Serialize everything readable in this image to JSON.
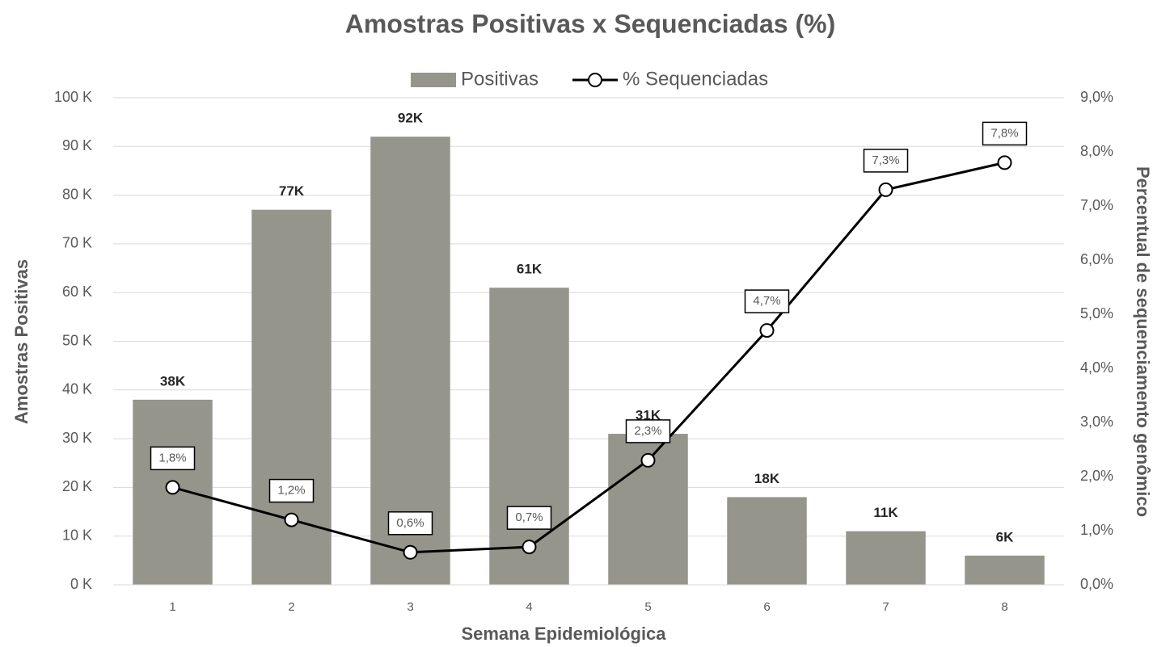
{
  "chart_data": {
    "type": "bar_line",
    "title": "Amostras Positivas x Sequenciadas (%)",
    "x_label": "Semana Epidemiológica",
    "y_label": "Amostras Positivas",
    "y2_label": "Percentual de sequenciamento genômico",
    "categories": [
      "1",
      "2",
      "3",
      "4",
      "5",
      "6",
      "7",
      "8"
    ],
    "series": [
      {
        "name": "Positivas",
        "type": "bar",
        "color": "#95958b",
        "values": [
          38,
          77,
          92,
          61,
          31,
          18,
          11,
          6
        ],
        "value_labels": [
          "38K",
          "77K",
          "92K",
          "61K",
          "31K",
          "18K",
          "11K",
          "6K"
        ]
      },
      {
        "name": "% Sequenciadas",
        "type": "line",
        "axis": "y2",
        "color": "#000000",
        "values": [
          1.8,
          1.2,
          0.6,
          0.7,
          2.3,
          4.7,
          7.3,
          7.8
        ],
        "value_labels": [
          "1,8%",
          "1,2%",
          "0,6%",
          "0,7%",
          "2,3%",
          "4,7%",
          "7,3%",
          "7,8%"
        ]
      }
    ],
    "ylim": [
      0,
      100
    ],
    "yticks": [
      {
        "value": 0,
        "label": "0 K"
      },
      {
        "value": 10,
        "label": "10 K"
      },
      {
        "value": 20,
        "label": "20 K"
      },
      {
        "value": 30,
        "label": "30 K"
      },
      {
        "value": 40,
        "label": "40 K"
      },
      {
        "value": 50,
        "label": "50 K"
      },
      {
        "value": 60,
        "label": "60 K"
      },
      {
        "value": 70,
        "label": "70 K"
      },
      {
        "value": 80,
        "label": "80 K"
      },
      {
        "value": 90,
        "label": "90 K"
      },
      {
        "value": 100,
        "label": "100 K"
      }
    ],
    "y2lim": [
      0,
      9
    ],
    "y2ticks": [
      {
        "value": 0,
        "label": "0,0%"
      },
      {
        "value": 1,
        "label": "1,0%"
      },
      {
        "value": 2,
        "label": "2,0%"
      },
      {
        "value": 3,
        "label": "3,0%"
      },
      {
        "value": 4,
        "label": "4,0%"
      },
      {
        "value": 5,
        "label": "5,0%"
      },
      {
        "value": 6,
        "label": "6,0%"
      },
      {
        "value": 7,
        "label": "7,0%"
      },
      {
        "value": 8,
        "label": "8,0%"
      },
      {
        "value": 9,
        "label": "9,0%"
      }
    ],
    "grid": true,
    "legend": "top"
  }
}
